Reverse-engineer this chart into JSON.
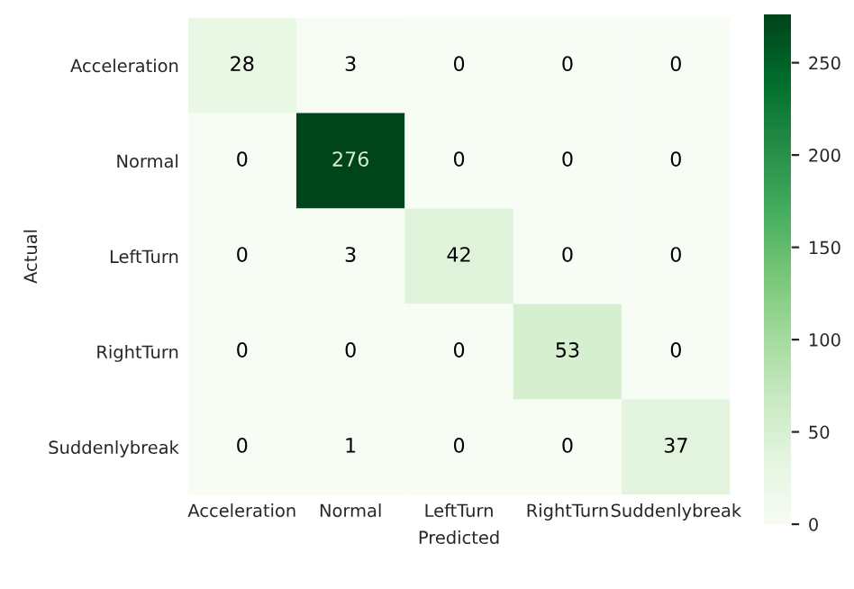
{
  "chart_data": {
    "type": "heatmap",
    "xlabel": "Predicted",
    "ylabel": "Actual",
    "categories": [
      "Acceleration",
      "Normal",
      "LeftTurn",
      "RightTurn",
      "Suddenlybreak"
    ],
    "y_categories": [
      "Acceleration",
      "Normal",
      "LeftTurn",
      "RightTurn",
      "Suddenlybreak"
    ],
    "cells": [
      [
        28,
        3,
        0,
        0,
        0
      ],
      [
        0,
        276,
        0,
        0,
        0
      ],
      [
        0,
        3,
        42,
        0,
        0
      ],
      [
        0,
        0,
        0,
        53,
        0
      ],
      [
        0,
        1,
        0,
        0,
        37
      ]
    ],
    "data_labels": true,
    "clim": [
      0,
      276
    ],
    "cticks": [
      0,
      50,
      100,
      150,
      200,
      250
    ]
  }
}
